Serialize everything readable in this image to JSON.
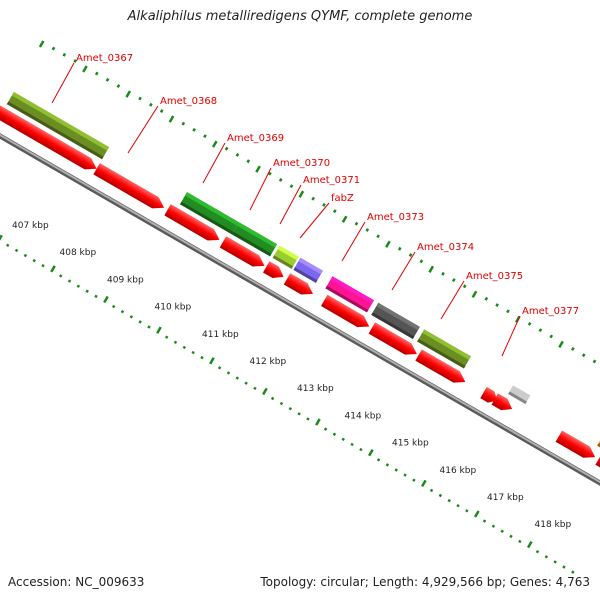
{
  "title": "Alkaliphilus metalliredigens QYMF, complete genome",
  "footer": {
    "accession": "Accession: NC_009633",
    "topology": "Topology: circular; Length: 4,929,566 bp; Genes: 4,763"
  },
  "colors": {
    "cds_forward": "#ff0000",
    "backbone": "#808080",
    "label_color": "#e00000",
    "tick_color": "#1a8a1a"
  },
  "gene_labels": [
    {
      "label": "Amet_0367"
    },
    {
      "label": "Amet_0368"
    },
    {
      "label": "Amet_0369"
    },
    {
      "label": "Amet_0370"
    },
    {
      "label": "Amet_0371"
    },
    {
      "label": "fabZ"
    },
    {
      "label": "Amet_0373"
    },
    {
      "label": "Amet_0374"
    },
    {
      "label": "Amet_0375"
    },
    {
      "label": "Amet_0377"
    }
  ],
  "cog_blocks": [
    {
      "color": "#6b8e23"
    },
    {
      "color": "#228b22"
    },
    {
      "color": "#228b22"
    },
    {
      "color": "#9acd32"
    },
    {
      "color": "#7b68ee"
    },
    {
      "color": "#ff1493"
    },
    {
      "color": "#555555"
    },
    {
      "color": "#6b8e23"
    },
    {
      "color": "#cccccc"
    },
    {
      "color": "#ff8c00"
    }
  ],
  "scale_labels": [
    "407 kbp",
    "408 kbp",
    "409 kbp",
    "410 kbp",
    "411 kbp",
    "412 kbp",
    "413 kbp",
    "414 kbp",
    "415 kbp",
    "416 kbp",
    "417 kbp",
    "418 kbp"
  ]
}
